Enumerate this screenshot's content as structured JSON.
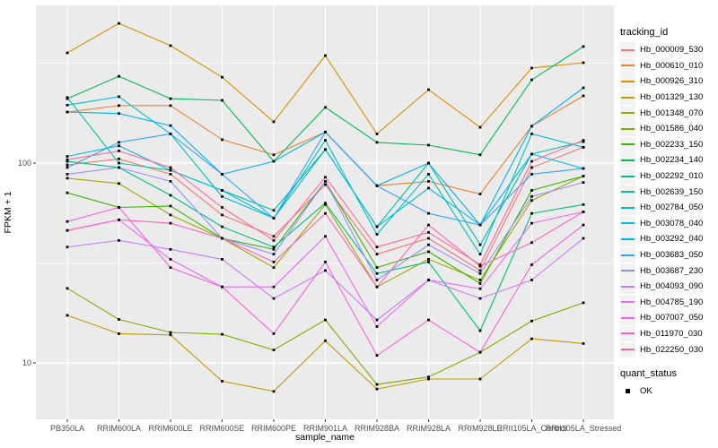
{
  "chart_data": {
    "type": "line",
    "title": "",
    "xlabel": "sample_name",
    "ylabel": "FPKM + 1",
    "y_scale": "log10",
    "grid": true,
    "panel_bg": "#EBEBEB",
    "grid_color": "#FFFFFF",
    "tick_label_color": "#4D4D4D",
    "marker_color": "#000000",
    "y_ticks": [
      {
        "value": 100,
        "label": "100"
      },
      {
        "value": 10,
        "label": "10"
      }
    ],
    "y_minor_ticks": [
      316.2,
      31.62
    ],
    "ylim": [
      5.2,
      620
    ],
    "legend_title": "tracking_id",
    "legend2_title": "quant_status",
    "legend2_items": [
      {
        "label": "OK",
        "marker": "black-square"
      }
    ],
    "categories": [
      "PB350LA",
      "RRIM600LA",
      "RRIM600LE",
      "RRIM600SE",
      "RRIM600PE",
      "RRIM901LA",
      "RRIM928BA",
      "RRIM928LA",
      "RRIM928LE",
      "RRII105LA_Control",
      "RRII105LA_Stressed"
    ],
    "series": [
      {
        "name": "Hb_000009_530",
        "color": "#F8766D",
        "values": [
          98,
          105,
          88,
          55,
          43,
          78,
          35,
          42,
          29,
          95,
          120
        ]
      },
      {
        "name": "Hb_000610_010",
        "color": "#EA8331",
        "values": [
          180,
          194,
          194,
          131,
          110,
          143,
          77,
          81,
          70,
          153,
          217
        ]
      },
      {
        "name": "Hb_000926_310",
        "color": "#D89000",
        "values": [
          356,
          500,
          387,
          269,
          161,
          345,
          140,
          233,
          151,
          299,
          318
        ]
      },
      {
        "name": "Hb_001329_130",
        "color": "#C09B00",
        "values": [
          17.3,
          14,
          13.8,
          8.1,
          7.2,
          12.9,
          7.4,
          8.3,
          8.3,
          13.2,
          12.5
        ]
      },
      {
        "name": "Hb_001348_070",
        "color": "#A3A500",
        "values": [
          84,
          79,
          55,
          42,
          30,
          62,
          24,
          33,
          26,
          65,
          86
        ]
      },
      {
        "name": "Hb_001586_040",
        "color": "#7CAE00",
        "values": [
          23.6,
          16.5,
          14.2,
          13.9,
          11.6,
          16.4,
          7.8,
          8.5,
          11.3,
          16.2,
          20
        ]
      },
      {
        "name": "Hb_002233_150",
        "color": "#39B600",
        "values": [
          71,
          60,
          61,
          42,
          37,
          81,
          30,
          36,
          25,
          73,
          86
        ]
      },
      {
        "name": "Hb_002234_140",
        "color": "#00BB4E",
        "values": [
          210,
          272,
          210,
          206,
          102,
          190,
          127,
          123,
          110,
          261,
          383
        ]
      },
      {
        "name": "Hb_002292_010",
        "color": "#00BF7D",
        "values": [
          102,
          95,
          69,
          48,
          38,
          63,
          28,
          32,
          14.5,
          56,
          62
        ]
      },
      {
        "name": "Hb_002639_150",
        "color": "#00C1A3",
        "values": [
          213,
          100,
          92,
          73,
          58,
          117,
          48,
          100,
          39,
          111,
          128
        ]
      },
      {
        "name": "Hb_002784_050",
        "color": "#00BFC4",
        "values": [
          195,
          215,
          140,
          68,
          53,
          130,
          44,
          88,
          35,
          140,
          120
        ]
      },
      {
        "name": "Hb_003078_040",
        "color": "#00BAE0",
        "values": [
          108,
          122,
          92,
          73,
          53,
          117,
          48,
          75,
          49,
          111,
          94
        ]
      },
      {
        "name": "Hb_003292_040",
        "color": "#00B0F6",
        "values": [
          180,
          177,
          154,
          88,
          102,
          143,
          77,
          100,
          49,
          153,
          238
        ]
      },
      {
        "name": "Hb_003683_050",
        "color": "#35A2FF",
        "values": [
          95,
          127,
          140,
          88,
          53,
          143,
          77,
          56,
          49,
          88,
          94
        ]
      },
      {
        "name": "Hb_003687_230",
        "color": "#9590FF",
        "values": [
          88,
          95,
          81,
          42,
          35,
          81,
          26,
          39,
          28,
          68,
          80
        ]
      },
      {
        "name": "Hb_004093_090",
        "color": "#C77CFF",
        "values": [
          38,
          41,
          37,
          33,
          21,
          29,
          16.4,
          26,
          21,
          26,
          42
        ]
      },
      {
        "name": "Hb_004785_190",
        "color": "#E76BF3",
        "values": [
          46,
          52,
          33,
          24,
          24,
          43,
          15.2,
          26,
          23.5,
          50,
          57
        ]
      },
      {
        "name": "Hb_007007_050",
        "color": "#FA62DB",
        "values": [
          51,
          60,
          30,
          24,
          14,
          32,
          10.9,
          16.4,
          11.3,
          31,
          49
        ]
      },
      {
        "name": "Hb_011970_030",
        "color": "#FF62BC",
        "values": [
          46,
          52,
          50,
          42,
          32,
          56,
          24,
          49,
          30.5,
          40,
          57
        ]
      },
      {
        "name": "Hb_022250_030",
        "color": "#FF6A98",
        "values": [
          104,
          115,
          95,
          60,
          41,
          85,
          38,
          45,
          31,
          102,
          130
        ]
      }
    ]
  }
}
